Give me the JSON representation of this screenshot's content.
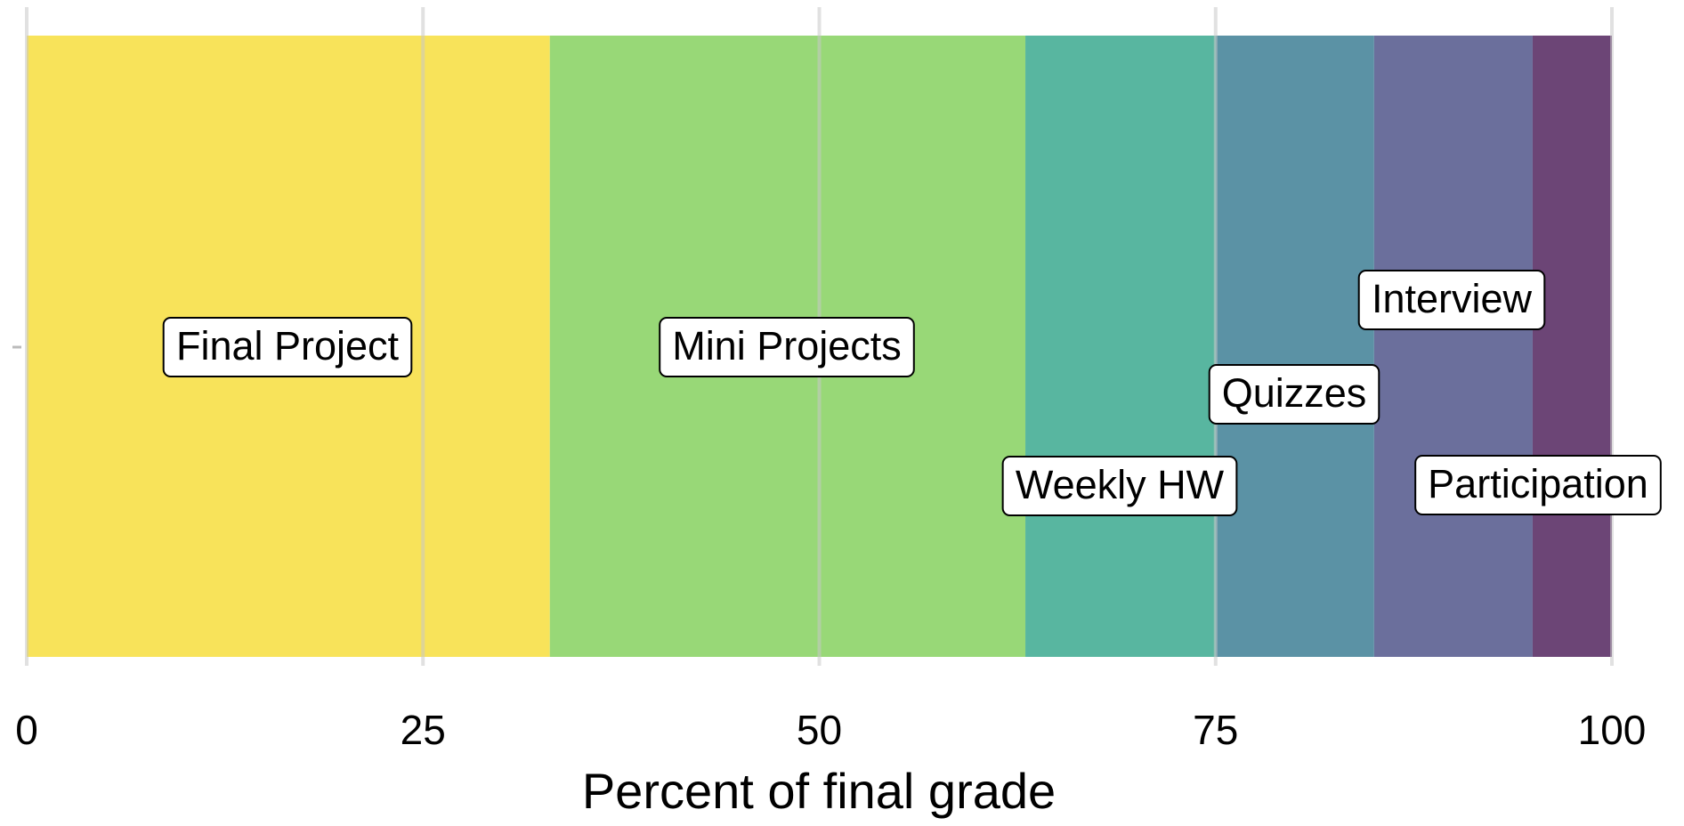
{
  "chart_data": {
    "type": "stacked-bar-horizontal",
    "x_label": "Percent of final grade",
    "series": [
      {
        "name": "Final Project",
        "color": "#f8e35a",
        "values": [
          33
        ]
      },
      {
        "name": "Mini Projects",
        "color": "#98d877",
        "values": [
          30
        ]
      },
      {
        "name": "Weekly HW",
        "color": "#58b6a0",
        "values": [
          12
        ]
      },
      {
        "name": "Quizzes",
        "color": "#5b92a5",
        "values": [
          10
        ]
      },
      {
        "name": "Interview",
        "color": "#6b6f9c",
        "values": [
          10
        ]
      },
      {
        "name": "Participation",
        "color": "#6c4576",
        "values": [
          5
        ]
      }
    ],
    "xlim": [
      0,
      100
    ],
    "xticks": [
      0,
      25,
      50,
      75,
      100
    ],
    "grid": true
  }
}
